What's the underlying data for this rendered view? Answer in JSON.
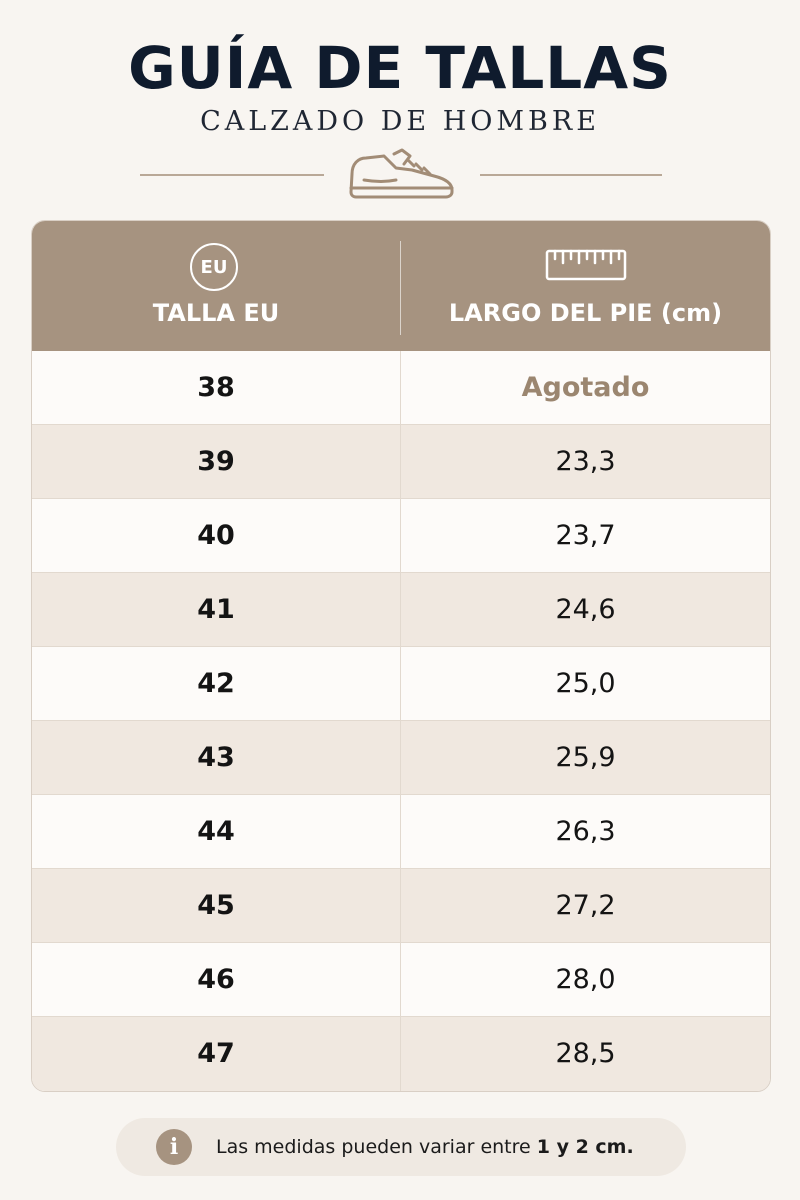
{
  "header": {
    "title": "GUÍA DE TALLAS",
    "subtitle": "CALZADO DE HOMBRE"
  },
  "icons": {
    "shoe": "sneaker-icon",
    "size": "eu-badge-icon",
    "length": "ruler-icon",
    "note": "info-icon"
  },
  "colors": {
    "header_bg": "#a69380",
    "title": "#0f1b2d",
    "sold_out": "#9b8670",
    "stripe": "#f0e8e0"
  },
  "table": {
    "eu_badge": "EU",
    "col_size": "TALLA EU",
    "col_length": "LARGO DEL PIE (cm)",
    "rows": [
      {
        "size": "38",
        "length": "Agotado"
      },
      {
        "size": "39",
        "length": "23,3"
      },
      {
        "size": "40",
        "length": "23,7"
      },
      {
        "size": "41",
        "length": "24,6"
      },
      {
        "size": "42",
        "length": "25,0"
      },
      {
        "size": "43",
        "length": "25,9"
      },
      {
        "size": "44",
        "length": "26,3"
      },
      {
        "size": "45",
        "length": "27,2"
      },
      {
        "size": "46",
        "length": "28,0"
      },
      {
        "size": "47",
        "length": "28,5"
      }
    ]
  },
  "note": {
    "icon_glyph": "i",
    "text": "Las medidas pueden variar entre ",
    "emphasis": "1 y 2 cm."
  }
}
